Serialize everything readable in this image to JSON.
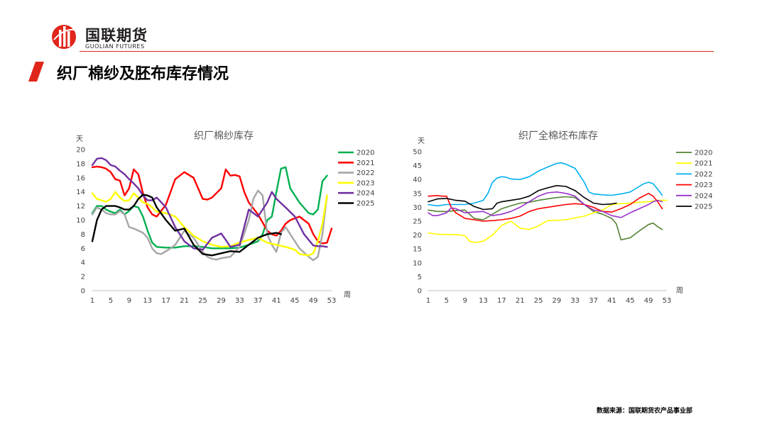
{
  "header": {
    "logo_cn": "国联期货",
    "logo_en": "GUOLIAN FUTURES",
    "page_title": "织厂棉纱及胚布库存情况"
  },
  "footer": {
    "source": "数据来源：国联期货农产品事业部"
  },
  "colors": {
    "2020_left": "#00b050",
    "2021_left": "#ff0000",
    "2022_left": "#a6a6a6",
    "2023_left": "#ffff00",
    "2024_left": "#7030a0",
    "2025_left": "#000000",
    "2020_right": "#548235",
    "2021_right": "#ffff00",
    "2022_right": "#00b0f0",
    "2023_right": "#ff0000",
    "2024_right": "#9933cc",
    "2025_right": "#000000",
    "brand_red": "#e0251b"
  },
  "chart_data": [
    {
      "type": "line",
      "title": "织厂棉纱库存",
      "ylabel": "天",
      "xlabel": "周",
      "ylim": [
        0,
        20
      ],
      "yticks": [
        "0",
        "2",
        "4",
        "6",
        "8",
        "10",
        "12",
        "14",
        "16",
        "18",
        "20"
      ],
      "xlim": [
        1,
        53
      ],
      "xticks": [
        "1",
        "5",
        "9",
        "13",
        "17",
        "21",
        "25",
        "29",
        "33",
        "37",
        "41",
        "45",
        "49",
        "53"
      ],
      "series": [
        {
          "name": "2020",
          "x": [
            1,
            2,
            3,
            4,
            5,
            6,
            7,
            8,
            9,
            10,
            11,
            12,
            13,
            14,
            15,
            17,
            19,
            21,
            23,
            25,
            27,
            29,
            31,
            33,
            35,
            37,
            38,
            39,
            40,
            41,
            42,
            43,
            44,
            46,
            48,
            49,
            50,
            51,
            52
          ],
          "values": [
            11,
            12,
            12,
            11.5,
            11.2,
            11,
            11.5,
            10.8,
            11.3,
            12,
            11.8,
            10.5,
            8.5,
            6.8,
            6.2,
            6.1,
            6.1,
            6.3,
            6.3,
            6.2,
            6,
            6,
            6,
            6.1,
            6.5,
            7,
            8,
            10,
            10.5,
            14,
            17.3,
            17.5,
            14.5,
            12.5,
            11,
            10.8,
            11.5,
            15.5,
            16.3
          ]
        },
        {
          "name": "2021",
          "x": [
            1,
            2,
            3,
            4,
            5,
            6,
            7,
            8,
            9,
            10,
            11,
            12,
            13,
            14,
            15,
            17,
            19,
            21,
            23,
            25,
            26,
            27,
            29,
            30,
            31,
            32,
            33,
            34,
            35,
            37,
            39,
            40,
            41,
            42,
            43,
            44,
            46,
            48,
            49,
            50,
            51,
            52,
            53
          ],
          "values": [
            17.5,
            17.6,
            17.5,
            17.3,
            16.8,
            15.8,
            15.6,
            13.5,
            14.5,
            17.2,
            16.5,
            13.8,
            11.8,
            10.8,
            10.5,
            12.2,
            15.8,
            16.8,
            16,
            13,
            12.9,
            13.2,
            14.5,
            17.2,
            16.3,
            16.4,
            16.2,
            14,
            12.5,
            10.8,
            8.5,
            8,
            7.8,
            8.5,
            9.5,
            10,
            10.5,
            9.5,
            8,
            7,
            6.7,
            6.8,
            8.8
          ]
        },
        {
          "name": "2022",
          "x": [
            1,
            2,
            3,
            4,
            5,
            6,
            7,
            8,
            9,
            10,
            11,
            12,
            13,
            14,
            15,
            16,
            17,
            18,
            19,
            21,
            23,
            25,
            26,
            27,
            28,
            29,
            31,
            33,
            35,
            36,
            37,
            38,
            39,
            40,
            41,
            42,
            43,
            44,
            46,
            48,
            49,
            50,
            51,
            52
          ],
          "values": [
            10.8,
            11.8,
            11.5,
            11,
            10.8,
            10.8,
            11.3,
            10.8,
            9,
            8.8,
            8.5,
            8.2,
            7.5,
            6,
            5.3,
            5.2,
            5.6,
            6,
            6.5,
            8.5,
            7.5,
            5.5,
            4.8,
            4.5,
            4.4,
            4.6,
            4.8,
            6.2,
            10,
            13,
            14.2,
            13.5,
            8,
            6.5,
            5.5,
            8.2,
            9,
            8,
            6,
            4.8,
            4.3,
            4.8,
            8,
            13.5
          ]
        },
        {
          "name": "2023",
          "x": [
            1,
            2,
            3,
            4,
            5,
            6,
            7,
            8,
            9,
            10,
            11,
            12,
            13,
            14,
            15,
            17,
            19,
            21,
            23,
            25,
            27,
            29,
            31,
            33,
            35,
            37,
            39,
            41,
            43,
            45,
            46,
            48,
            49,
            50,
            51,
            52
          ],
          "values": [
            13.8,
            13,
            12.8,
            12.6,
            13,
            14,
            13.2,
            12.7,
            12.8,
            13.8,
            13.2,
            12.5,
            12.3,
            11.8,
            11.2,
            11,
            10.5,
            9,
            7.8,
            7,
            6.5,
            6.2,
            6.3,
            6.8,
            7.2,
            7.5,
            6.8,
            6.5,
            6.2,
            5.8,
            5.2,
            5,
            5.3,
            7,
            9.5,
            13.5
          ]
        },
        {
          "name": "2024",
          "x": [
            1,
            2,
            3,
            4,
            5,
            6,
            7,
            8,
            9,
            10,
            11,
            12,
            13,
            14,
            15,
            16,
            17,
            19,
            21,
            23,
            25,
            27,
            29,
            30,
            31,
            33,
            35,
            37,
            39,
            40,
            41,
            43,
            45,
            47,
            49,
            50,
            51,
            52
          ],
          "values": [
            17.8,
            18.7,
            18.8,
            18.5,
            17.8,
            17.6,
            17,
            16.5,
            15.8,
            15.2,
            14.5,
            13.5,
            12.8,
            12.8,
            13.2,
            12.5,
            11.8,
            9,
            7,
            6,
            5.8,
            7.5,
            8.1,
            7.2,
            6.2,
            6.5,
            11.5,
            10.5,
            12.5,
            14,
            13,
            11.8,
            10.5,
            8,
            6.4,
            6.3,
            6.3,
            6.2
          ]
        },
        {
          "name": "2025",
          "x": [
            1,
            2,
            3,
            4,
            5,
            6,
            7,
            8,
            9,
            10,
            11,
            12,
            13,
            14,
            15,
            17,
            19,
            21,
            23,
            25,
            27,
            29,
            31,
            33,
            35,
            37,
            39,
            41,
            42
          ],
          "values": [
            7,
            10,
            11.5,
            12,
            12,
            12,
            11.8,
            11.5,
            11.5,
            12,
            13,
            13.6,
            13.5,
            13.2,
            11.8,
            10,
            8.5,
            8.8,
            6.5,
            5.2,
            5,
            5.3,
            5.6,
            5.5,
            6.5,
            7.5,
            8,
            8.2,
            8
          ]
        }
      ]
    },
    {
      "type": "line",
      "title": "织厂全棉坯布库存",
      "ylabel": "天",
      "xlabel": "周",
      "ylim": [
        0,
        50
      ],
      "yticks": [
        "0",
        "5",
        "10",
        "15",
        "20",
        "25",
        "30",
        "35",
        "40",
        "45",
        "50"
      ],
      "xlim": [
        1,
        53
      ],
      "xticks": [
        "1",
        "5",
        "9",
        "13",
        "17",
        "21",
        "25",
        "29",
        "33",
        "37",
        "41",
        "45",
        "49",
        "53"
      ],
      "series": [
        {
          "name": "2020",
          "x": [
            1,
            3,
            5,
            7,
            9,
            11,
            13,
            15,
            17,
            19,
            21,
            23,
            25,
            27,
            29,
            31,
            33,
            35,
            37,
            39,
            41,
            42,
            43,
            45,
            47,
            49,
            50,
            51,
            52
          ],
          "values": [
            29,
            28.5,
            28.5,
            28.8,
            29,
            26,
            25.5,
            27.5,
            29.5,
            30.5,
            31.5,
            31.8,
            32.5,
            33,
            33.5,
            33.8,
            33.5,
            31,
            28.5,
            27.5,
            26,
            24,
            18.3,
            19,
            21.5,
            23.8,
            24.3,
            23,
            22
          ]
        },
        {
          "name": "2021",
          "x": [
            1,
            3,
            5,
            7,
            8,
            9,
            10,
            11,
            12,
            13,
            15,
            17,
            19,
            21,
            23,
            25,
            27,
            29,
            31,
            33,
            35,
            37,
            39,
            41,
            43,
            45,
            47,
            49,
            51,
            53
          ],
          "values": [
            20.8,
            20.3,
            20.2,
            20.2,
            20,
            19.8,
            17.8,
            17.3,
            17.5,
            17.8,
            20,
            23.5,
            25,
            22.5,
            22,
            23.3,
            25.2,
            25.3,
            25.5,
            26.2,
            26.8,
            28,
            29,
            31,
            31.3,
            31.5,
            31.8,
            32,
            32.5,
            32.5
          ]
        },
        {
          "name": "2022",
          "x": [
            1,
            3,
            5,
            7,
            9,
            11,
            13,
            14,
            15,
            16,
            17,
            18,
            19,
            21,
            23,
            25,
            27,
            29,
            30,
            31,
            33,
            35,
            36,
            37,
            39,
            41,
            43,
            45,
            47,
            48,
            49,
            50,
            51,
            52
          ],
          "values": [
            31,
            30.5,
            31,
            31,
            31,
            31.5,
            32.5,
            35,
            39,
            40.5,
            41,
            40.8,
            40.2,
            40,
            41,
            43,
            44.5,
            45.8,
            46,
            45.5,
            44,
            39,
            35.5,
            34.8,
            34.5,
            34.3,
            34.8,
            35.5,
            37.5,
            38.5,
            39,
            38.5,
            36.5,
            34.3
          ]
        },
        {
          "name": "2023",
          "x": [
            1,
            3,
            4,
            5,
            6,
            7,
            9,
            11,
            13,
            15,
            17,
            19,
            21,
            23,
            25,
            27,
            29,
            31,
            33,
            35,
            37,
            39,
            41,
            43,
            45,
            47,
            49,
            50,
            51,
            52
          ],
          "values": [
            34,
            34.2,
            34,
            34,
            30,
            28,
            26,
            25.5,
            25,
            25.2,
            25.5,
            26,
            26.8,
            28.5,
            29.5,
            30,
            30.5,
            31,
            31.3,
            31,
            30,
            28.5,
            28.3,
            29.5,
            31,
            33.3,
            35,
            34,
            32,
            29.5
          ]
        },
        {
          "name": "2024",
          "x": [
            1,
            2,
            3,
            4,
            5,
            6,
            7,
            9,
            11,
            13,
            15,
            17,
            19,
            21,
            23,
            25,
            27,
            29,
            31,
            33,
            35,
            37,
            39,
            41,
            43,
            45,
            47,
            49,
            50,
            51,
            52
          ],
          "values": [
            28,
            27,
            27,
            27.5,
            28,
            29.8,
            29.5,
            28,
            28.3,
            28.5,
            27,
            27.5,
            28.5,
            30,
            32,
            34,
            35.2,
            35.5,
            35,
            34,
            31,
            29,
            28.5,
            27,
            26.3,
            28,
            29.5,
            31,
            32,
            32.5,
            32
          ]
        },
        {
          "name": "2025",
          "x": [
            1,
            3,
            5,
            7,
            9,
            11,
            13,
            15,
            16,
            17,
            19,
            21,
            23,
            25,
            27,
            29,
            31,
            33,
            35,
            37,
            39,
            41,
            42
          ],
          "values": [
            32,
            33,
            33.2,
            32.5,
            32.2,
            30.3,
            29.2,
            29.5,
            31.5,
            32,
            32.5,
            33,
            34,
            36,
            37,
            37.8,
            37.5,
            36,
            33.5,
            31.5,
            31,
            31.2,
            31.5
          ]
        }
      ]
    }
  ]
}
